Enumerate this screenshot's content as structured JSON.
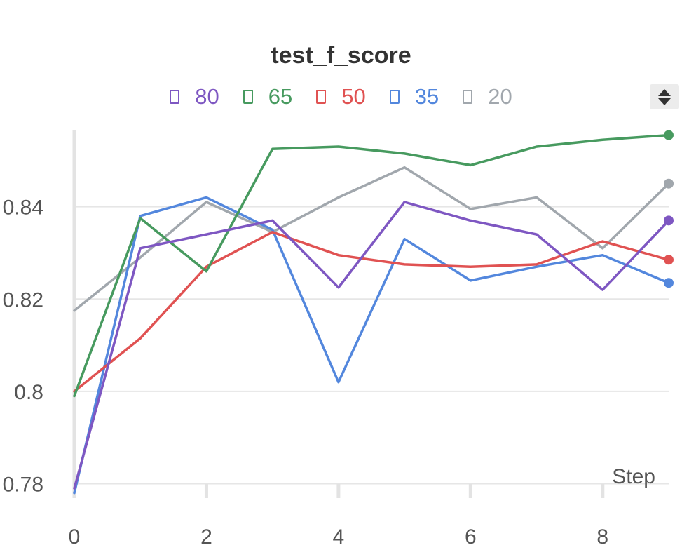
{
  "chart_data": {
    "type": "line",
    "title": "test_f_score",
    "xlabel": "Step",
    "ylabel": "",
    "xlim": [
      0,
      9
    ],
    "ylim": [
      0.7775,
      0.8565
    ],
    "x_ticks": [
      0,
      2,
      4,
      6,
      8
    ],
    "y_ticks": [
      0.78,
      0.8,
      0.82,
      0.84
    ],
    "y_tick_labels": [
      "0.78",
      "0.8",
      "0.82",
      "0.84"
    ],
    "grid": true,
    "legend_position": "top-center",
    "x": [
      0,
      1,
      2,
      3,
      4,
      5,
      6,
      7,
      8,
      9
    ],
    "series": [
      {
        "name": "80",
        "color": "#7e57c2",
        "values": [
          0.779,
          0.831,
          0.834,
          0.837,
          0.8225,
          0.841,
          0.837,
          0.834,
          0.822,
          0.837
        ]
      },
      {
        "name": "65",
        "color": "#479a5f",
        "values": [
          0.799,
          0.8375,
          0.826,
          0.8525,
          0.853,
          0.8515,
          0.849,
          0.853,
          0.8545,
          0.8555
        ]
      },
      {
        "name": "50",
        "color": "#e05252",
        "values": [
          0.8,
          0.8115,
          0.827,
          0.8345,
          0.8295,
          0.8275,
          0.827,
          0.8275,
          0.8325,
          0.8285
        ]
      },
      {
        "name": "35",
        "color": "#5387dd",
        "values": [
          0.778,
          0.838,
          0.842,
          0.835,
          0.802,
          0.833,
          0.824,
          0.827,
          0.8295,
          0.8235
        ]
      },
      {
        "name": "20",
        "color": "#a1a7ad",
        "values": [
          0.8175,
          0.829,
          0.841,
          0.8345,
          0.842,
          0.8485,
          0.8395,
          0.842,
          0.831,
          0.845
        ]
      }
    ]
  }
}
